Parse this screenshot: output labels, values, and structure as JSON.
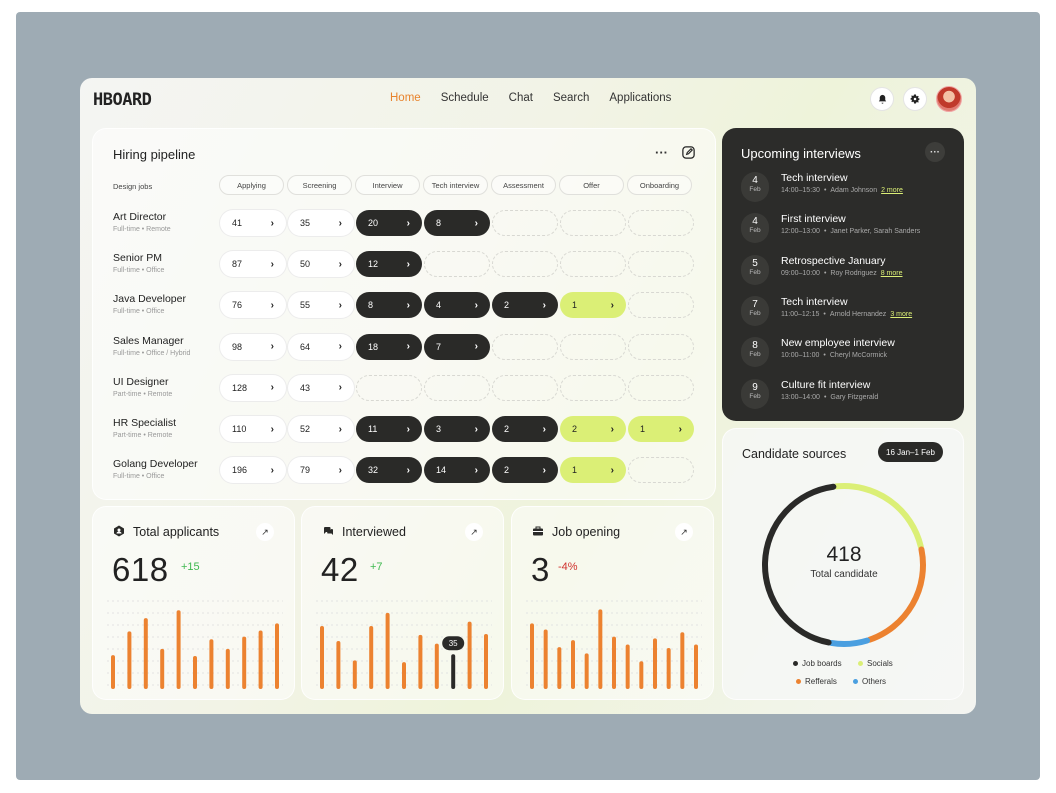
{
  "header": {
    "logo": "HBOARD",
    "nav": [
      {
        "label": "Home",
        "active": true
      },
      {
        "label": "Schedule",
        "active": false
      },
      {
        "label": "Chat",
        "active": false
      },
      {
        "label": "Search",
        "active": false
      },
      {
        "label": "Applications",
        "active": false
      }
    ],
    "icons": [
      "bell-icon",
      "gear-icon",
      "avatar"
    ]
  },
  "pipeline": {
    "title": "Hiring pipeline",
    "more_label": "···",
    "jobs_header": "Design jobs",
    "stages": [
      "Applying",
      "Screening",
      "Interview",
      "Tech interview",
      "Assessment",
      "Offer",
      "Onboarding"
    ],
    "jobs": [
      {
        "title": "Art Director",
        "type": "Full-time",
        "location": "Remote",
        "cells": [
          {
            "v": "41",
            "s": "white"
          },
          {
            "v": "35",
            "s": "white"
          },
          {
            "v": "20",
            "s": "dark"
          },
          {
            "v": "8",
            "s": "dark"
          },
          {
            "v": "",
            "s": "empty"
          },
          {
            "v": "",
            "s": "empty"
          },
          {
            "v": "",
            "s": "empty"
          }
        ]
      },
      {
        "title": "Senior PM",
        "type": "Full-time",
        "location": "Office",
        "cells": [
          {
            "v": "87",
            "s": "white"
          },
          {
            "v": "50",
            "s": "white"
          },
          {
            "v": "12",
            "s": "dark"
          },
          {
            "v": "",
            "s": "empty"
          },
          {
            "v": "",
            "s": "empty"
          },
          {
            "v": "",
            "s": "empty"
          },
          {
            "v": "",
            "s": "empty"
          }
        ]
      },
      {
        "title": "Java Developer",
        "type": "Full-time",
        "location": "Office",
        "cells": [
          {
            "v": "76",
            "s": "white"
          },
          {
            "v": "55",
            "s": "white"
          },
          {
            "v": "8",
            "s": "dark"
          },
          {
            "v": "4",
            "s": "dark"
          },
          {
            "v": "2",
            "s": "dark"
          },
          {
            "v": "1",
            "s": "lime"
          },
          {
            "v": "",
            "s": "empty"
          }
        ]
      },
      {
        "title": "Sales Manager",
        "type": "Full-time",
        "location": "Office / Hybrid",
        "cells": [
          {
            "v": "98",
            "s": "white"
          },
          {
            "v": "64",
            "s": "white"
          },
          {
            "v": "18",
            "s": "dark"
          },
          {
            "v": "7",
            "s": "dark"
          },
          {
            "v": "",
            "s": "empty"
          },
          {
            "v": "",
            "s": "empty"
          },
          {
            "v": "",
            "s": "empty"
          }
        ]
      },
      {
        "title": "UI Designer",
        "type": "Part-time",
        "location": "Remote",
        "cells": [
          {
            "v": "128",
            "s": "white"
          },
          {
            "v": "43",
            "s": "white"
          },
          {
            "v": "",
            "s": "empty"
          },
          {
            "v": "",
            "s": "empty"
          },
          {
            "v": "",
            "s": "empty"
          },
          {
            "v": "",
            "s": "empty"
          },
          {
            "v": "",
            "s": "empty"
          }
        ]
      },
      {
        "title": "HR Specialist",
        "type": "Part-time",
        "location": "Remote",
        "cells": [
          {
            "v": "110",
            "s": "white"
          },
          {
            "v": "52",
            "s": "white"
          },
          {
            "v": "11",
            "s": "dark"
          },
          {
            "v": "3",
            "s": "dark"
          },
          {
            "v": "2",
            "s": "dark"
          },
          {
            "v": "2",
            "s": "lime"
          },
          {
            "v": "1",
            "s": "lime"
          }
        ]
      },
      {
        "title": "Golang Developer",
        "type": "Full-time",
        "location": "Office",
        "cells": [
          {
            "v": "196",
            "s": "white"
          },
          {
            "v": "79",
            "s": "white"
          },
          {
            "v": "32",
            "s": "dark"
          },
          {
            "v": "14",
            "s": "dark"
          },
          {
            "v": "2",
            "s": "dark"
          },
          {
            "v": "1",
            "s": "lime"
          },
          {
            "v": "",
            "s": "empty"
          }
        ]
      }
    ]
  },
  "interviews": {
    "title": "Upcoming interviews",
    "more_label": "···",
    "items": [
      {
        "day": "4",
        "month": "Feb",
        "name": "Tech interview",
        "time": "14:00–15:30",
        "people": "Adam Johnson",
        "more": "2 more"
      },
      {
        "day": "4",
        "month": "Feb",
        "name": "First interview",
        "time": "12:00–13:00",
        "people": "Janet Parker, Sarah Sanders",
        "more": ""
      },
      {
        "day": "5",
        "month": "Feb",
        "name": "Retrospective January",
        "time": "09:00–10:00",
        "people": "Roy Rodriguez",
        "more": "8 more"
      },
      {
        "day": "7",
        "month": "Feb",
        "name": "Tech interview",
        "time": "11:00–12:15",
        "people": "Arnold Hernandez",
        "more": "3 more"
      },
      {
        "day": "8",
        "month": "Feb",
        "name": "New employee interview",
        "time": "10:00–11:00",
        "people": "Cheryl McCormick",
        "more": ""
      },
      {
        "day": "9",
        "month": "Feb",
        "name": "Culture fit interview",
        "time": "13:00–14:00",
        "people": "Gary Fitzgerald",
        "more": ""
      }
    ]
  },
  "sources": {
    "title": "Candidate sources",
    "range": "16 Jan–1 Feb",
    "total": "418",
    "total_label": "Total candidate",
    "segments": [
      {
        "name": "Job boards",
        "share": 0.43,
        "color": "#2a2a28"
      },
      {
        "name": "Socials",
        "share": 0.22,
        "color": "#dbef76"
      },
      {
        "name": "Refferals",
        "share": 0.22,
        "color": "#ec8230"
      },
      {
        "name": "Others",
        "share": 0.07,
        "color": "#4a9fe0"
      }
    ]
  },
  "stats": [
    {
      "title": "Total applicants",
      "icon": "hexagon-user-icon",
      "value": "618",
      "delta": "+15",
      "delta_color": "#3fb950",
      "bars": [
        34,
        61,
        76,
        41,
        85,
        33,
        52,
        41,
        55,
        62,
        70
      ],
      "highlight": -1,
      "highlight_label": ""
    },
    {
      "title": "Interviewed",
      "icon": "chat-bubbles-icon",
      "value": "42",
      "delta": "+7",
      "delta_color": "#3fb950",
      "bars": [
        67,
        50,
        28,
        67,
        82,
        26,
        57,
        47,
        35,
        72,
        58
      ],
      "highlight": 8,
      "highlight_label": "35"
    },
    {
      "title": "Job opening",
      "icon": "briefcase-icon",
      "value": "3",
      "delta": "-4%",
      "delta_color": "#d0312d",
      "bars": [
        70,
        63,
        43,
        51,
        36,
        86,
        55,
        46,
        27,
        53,
        42,
        60,
        46
      ],
      "highlight": -1,
      "highlight_label": ""
    }
  ]
}
